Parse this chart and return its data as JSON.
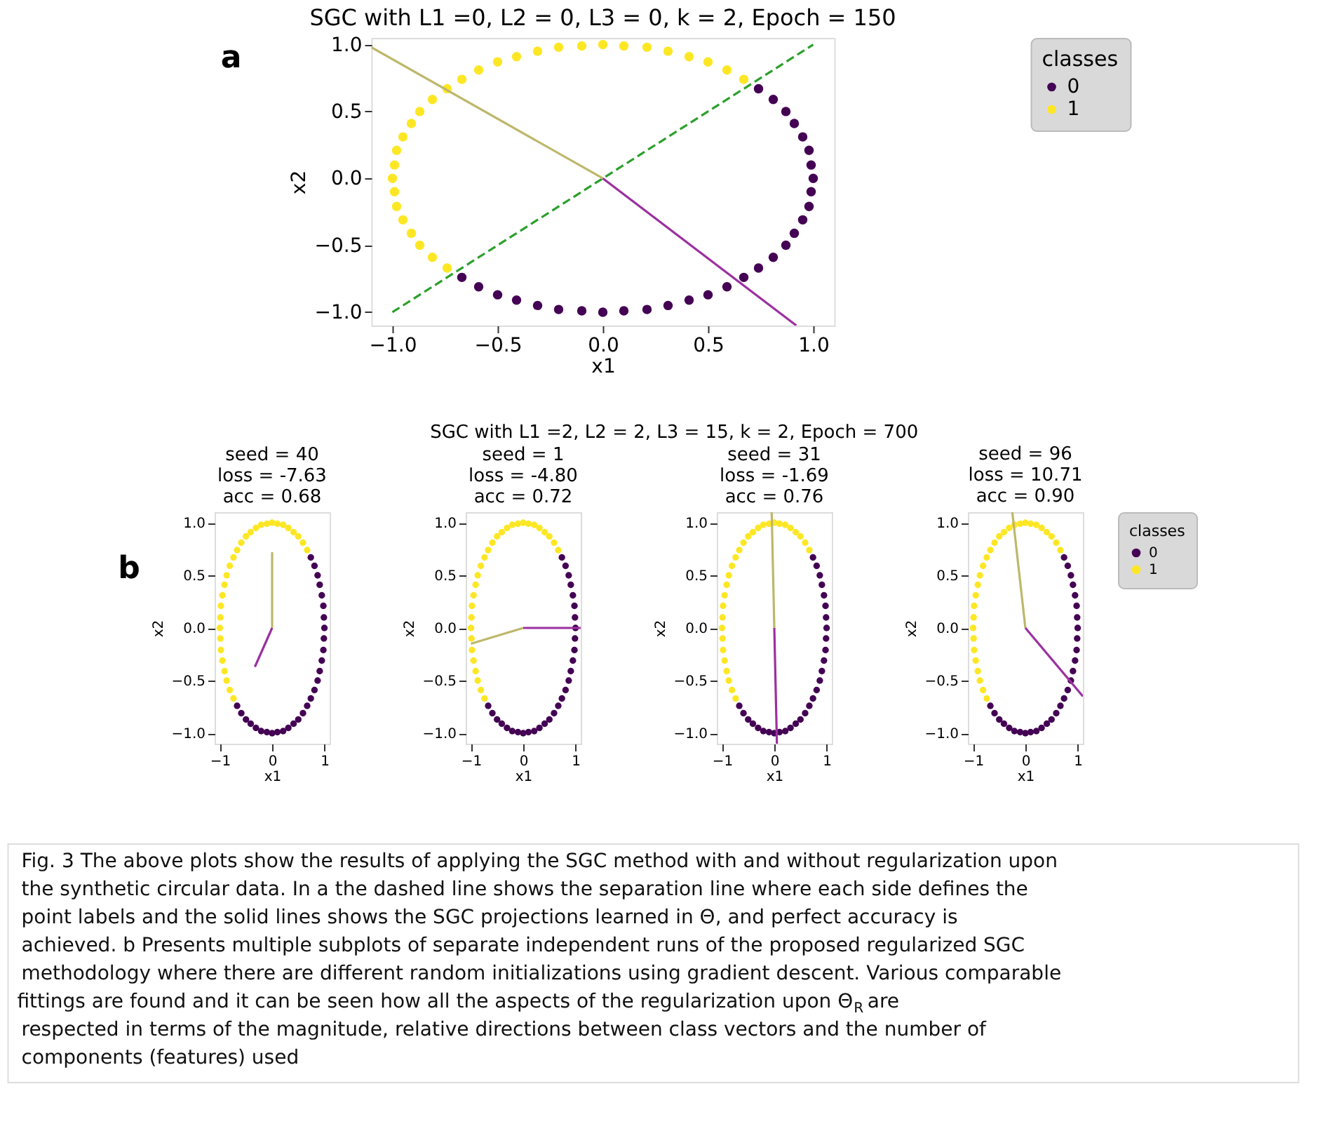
{
  "chart_data": [
    {
      "type": "scatter",
      "title": "SGC with L1 =0, L2 = 0, L3 = 0, k = 2, Epoch = 150",
      "xlabel": "x1",
      "ylabel": "x2",
      "legend_title": "classes",
      "legend": "right",
      "grid": false,
      "marker": "circle",
      "annotations": [
        "a"
      ],
      "xlim": [
        -1.1,
        1.1
      ],
      "ylim": [
        -1.1,
        1.05
      ],
      "xticks": [
        {
          "value": -1,
          "label": "−1.0"
        },
        {
          "value": -0.5,
          "label": "−0.5"
        },
        {
          "value": 0,
          "label": "0.0"
        },
        {
          "value": 0.5,
          "label": "0.5"
        },
        {
          "value": 1,
          "label": "1.0"
        }
      ],
      "yticks": [
        {
          "value": -1,
          "label": "−1.0"
        },
        {
          "value": -0.5,
          "label": "−0.5"
        },
        {
          "value": 0,
          "label": "0.0"
        },
        {
          "value": 0.5,
          "label": "0.5"
        },
        {
          "value": 1,
          "label": "1.0"
        }
      ],
      "series": [
        {
          "name": "0",
          "color": "#440154",
          "x": [
            0.74,
            0.81,
            0.87,
            0.91,
            0.95,
            0.98,
            0.99,
            1.0,
            0.99,
            0.98,
            0.95,
            0.91,
            0.87,
            0.81,
            0.74,
            0.67,
            0.59,
            0.5,
            0.41,
            0.31,
            0.21,
            0.1,
            0.0,
            -0.1,
            -0.21,
            -0.31,
            -0.41,
            -0.5,
            -0.59,
            -0.67
          ],
          "values": [
            0.67,
            0.59,
            0.5,
            0.41,
            0.31,
            0.21,
            0.1,
            0.0,
            -0.1,
            -0.21,
            -0.31,
            -0.41,
            -0.5,
            -0.59,
            -0.67,
            -0.74,
            -0.81,
            -0.87,
            -0.91,
            -0.95,
            -0.98,
            -0.99,
            -1.0,
            -0.99,
            -0.98,
            -0.95,
            -0.91,
            -0.87,
            -0.81,
            -0.74
          ]
        },
        {
          "name": "1",
          "color": "#fde725",
          "x": [
            0.67,
            0.59,
            0.5,
            0.41,
            0.31,
            0.21,
            0.1,
            0.0,
            -0.1,
            -0.21,
            -0.31,
            -0.41,
            -0.5,
            -0.59,
            -0.67,
            -0.74,
            -0.81,
            -0.87,
            -0.91,
            -0.95,
            -0.98,
            -0.99,
            -1.0,
            -0.99,
            -0.98,
            -0.95,
            -0.91,
            -0.87,
            -0.81,
            -0.74
          ],
          "values": [
            0.74,
            0.81,
            0.87,
            0.91,
            0.95,
            0.98,
            0.99,
            1.0,
            0.99,
            0.98,
            0.95,
            0.91,
            0.87,
            0.81,
            0.74,
            0.67,
            0.59,
            0.5,
            0.41,
            0.31,
            0.21,
            0.1,
            0.0,
            -0.1,
            -0.21,
            -0.31,
            -0.41,
            -0.5,
            -0.59,
            -0.67
          ]
        },
        {
          "type": "line",
          "marker": "none",
          "color": "#2ca02c",
          "line_style": "dashed",
          "x": [
            -1,
            1
          ],
          "values": [
            -1,
            1
          ]
        },
        {
          "type": "line",
          "marker": "none",
          "color": "#bdb76b",
          "line_style": "solid",
          "x": [
            0,
            -1.1
          ],
          "values": [
            0,
            0.98
          ]
        },
        {
          "type": "line",
          "marker": "none",
          "color": "#9b30a0",
          "line_style": "solid",
          "x": [
            0,
            0.92
          ],
          "values": [
            0,
            -1.1
          ]
        }
      ]
    },
    {
      "type": "scatter",
      "title": "seed = 40\nloss = -7.63\nacc = 0.68",
      "xlabel": "x1",
      "ylabel": "x2",
      "legend": false,
      "grid": false,
      "marker": "circle",
      "annotations": [
        "b",
        "SGC with L1 =2, L2 = 2, L3 = 15, k = 2, Epoch = 700"
      ],
      "xlim": [
        -1.1,
        1.1
      ],
      "ylim": [
        -1.1,
        1.1
      ],
      "xticks": [
        {
          "value": -1,
          "label": "−1"
        },
        0,
        1
      ],
      "yticks": [
        {
          "value": -1,
          "label": "−1.0"
        },
        {
          "value": -0.5,
          "label": "−0.5"
        },
        {
          "value": 0,
          "label": "0.0"
        },
        {
          "value": 0.5,
          "label": "0.5"
        },
        {
          "value": 1,
          "label": "1.0"
        }
      ],
      "series": [
        {
          "color": "#440154",
          "x": [
            0.74,
            0.81,
            0.87,
            0.91,
            0.95,
            0.98,
            0.99,
            1.0,
            0.99,
            0.98,
            0.95,
            0.91,
            0.87,
            0.81,
            0.74,
            0.67,
            0.59,
            0.5,
            0.41,
            0.31,
            0.21,
            0.1,
            0.0,
            -0.1,
            -0.21,
            -0.31,
            -0.41,
            -0.5,
            -0.59,
            -0.67
          ],
          "values": [
            0.67,
            0.59,
            0.5,
            0.41,
            0.31,
            0.21,
            0.1,
            0.0,
            -0.1,
            -0.21,
            -0.31,
            -0.41,
            -0.5,
            -0.59,
            -0.67,
            -0.74,
            -0.81,
            -0.87,
            -0.91,
            -0.95,
            -0.98,
            -0.99,
            -1.0,
            -0.99,
            -0.98,
            -0.95,
            -0.91,
            -0.87,
            -0.81,
            -0.74
          ]
        },
        {
          "color": "#fde725",
          "x": [
            0.67,
            0.59,
            0.5,
            0.41,
            0.31,
            0.21,
            0.1,
            0.0,
            -0.1,
            -0.21,
            -0.31,
            -0.41,
            -0.5,
            -0.59,
            -0.67,
            -0.74,
            -0.81,
            -0.87,
            -0.91,
            -0.95,
            -0.98,
            -0.99,
            -1.0,
            -0.99,
            -0.98,
            -0.95,
            -0.91,
            -0.87,
            -0.81,
            -0.74
          ],
          "values": [
            0.74,
            0.81,
            0.87,
            0.91,
            0.95,
            0.98,
            0.99,
            1.0,
            0.99,
            0.98,
            0.95,
            0.91,
            0.87,
            0.81,
            0.74,
            0.67,
            0.59,
            0.5,
            0.41,
            0.31,
            0.21,
            0.1,
            0.0,
            -0.1,
            -0.21,
            -0.31,
            -0.41,
            -0.5,
            -0.59,
            -0.67
          ]
        },
        {
          "type": "line",
          "marker": "none",
          "color": "#bdb76b",
          "line_style": "solid",
          "x": [
            0,
            0
          ],
          "values": [
            0,
            0.72
          ]
        },
        {
          "type": "line",
          "marker": "none",
          "color": "#9b30a0",
          "line_style": "solid",
          "x": [
            0,
            -0.33
          ],
          "values": [
            0,
            -0.37
          ]
        }
      ]
    },
    {
      "type": "scatter",
      "title": "seed = 1\nloss = -4.80\nacc = 0.72",
      "xlabel": "x1",
      "ylabel": "x2",
      "legend": false,
      "grid": false,
      "marker": "circle",
      "xlim": [
        -1.1,
        1.1
      ],
      "ylim": [
        -1.1,
        1.1
      ],
      "xticks": [
        {
          "value": -1,
          "label": "−1"
        },
        0,
        1
      ],
      "yticks": [
        {
          "value": -1,
          "label": "−1.0"
        },
        {
          "value": -0.5,
          "label": "−0.5"
        },
        {
          "value": 0,
          "label": "0.0"
        },
        {
          "value": 0.5,
          "label": "0.5"
        },
        {
          "value": 1,
          "label": "1.0"
        }
      ],
      "series": [
        {
          "color": "#440154",
          "x": [
            0.74,
            0.81,
            0.87,
            0.91,
            0.95,
            0.98,
            0.99,
            1.0,
            0.99,
            0.98,
            0.95,
            0.91,
            0.87,
            0.81,
            0.74,
            0.67,
            0.59,
            0.5,
            0.41,
            0.31,
            0.21,
            0.1,
            0.0,
            -0.1,
            -0.21,
            -0.31,
            -0.41,
            -0.5,
            -0.59,
            -0.67
          ],
          "values": [
            0.67,
            0.59,
            0.5,
            0.41,
            0.31,
            0.21,
            0.1,
            0.0,
            -0.1,
            -0.21,
            -0.31,
            -0.41,
            -0.5,
            -0.59,
            -0.67,
            -0.74,
            -0.81,
            -0.87,
            -0.91,
            -0.95,
            -0.98,
            -0.99,
            -1.0,
            -0.99,
            -0.98,
            -0.95,
            -0.91,
            -0.87,
            -0.81,
            -0.74
          ]
        },
        {
          "color": "#fde725",
          "x": [
            0.67,
            0.59,
            0.5,
            0.41,
            0.31,
            0.21,
            0.1,
            0.0,
            -0.1,
            -0.21,
            -0.31,
            -0.41,
            -0.5,
            -0.59,
            -0.67,
            -0.74,
            -0.81,
            -0.87,
            -0.91,
            -0.95,
            -0.98,
            -0.99,
            -1.0,
            -0.99,
            -0.98,
            -0.95,
            -0.91,
            -0.87,
            -0.81,
            -0.74
          ],
          "values": [
            0.74,
            0.81,
            0.87,
            0.91,
            0.95,
            0.98,
            0.99,
            1.0,
            0.99,
            0.98,
            0.95,
            0.91,
            0.87,
            0.81,
            0.74,
            0.67,
            0.59,
            0.5,
            0.41,
            0.31,
            0.21,
            0.1,
            0.0,
            -0.1,
            -0.21,
            -0.31,
            -0.41,
            -0.5,
            -0.59,
            -0.67
          ]
        },
        {
          "type": "line",
          "marker": "none",
          "color": "#bdb76b",
          "line_style": "solid",
          "x": [
            0,
            -1.0
          ],
          "values": [
            0,
            -0.15
          ]
        },
        {
          "type": "line",
          "marker": "none",
          "color": "#9b30a0",
          "line_style": "solid",
          "x": [
            0,
            1.1
          ],
          "values": [
            0,
            0.0
          ]
        }
      ]
    },
    {
      "type": "scatter",
      "title": "seed = 31\nloss = -1.69\nacc = 0.76",
      "xlabel": "x1",
      "ylabel": "x2",
      "legend": false,
      "grid": false,
      "marker": "circle",
      "xlim": [
        -1.1,
        1.1
      ],
      "ylim": [
        -1.1,
        1.1
      ],
      "xticks": [
        {
          "value": -1,
          "label": "−1"
        },
        0,
        1
      ],
      "yticks": [
        {
          "value": -1,
          "label": "−1.0"
        },
        {
          "value": -0.5,
          "label": "−0.5"
        },
        {
          "value": 0,
          "label": "0.0"
        },
        {
          "value": 0.5,
          "label": "0.5"
        },
        {
          "value": 1,
          "label": "1.0"
        }
      ],
      "series": [
        {
          "color": "#440154",
          "x": [
            0.74,
            0.81,
            0.87,
            0.91,
            0.95,
            0.98,
            0.99,
            1.0,
            0.99,
            0.98,
            0.95,
            0.91,
            0.87,
            0.81,
            0.74,
            0.67,
            0.59,
            0.5,
            0.41,
            0.31,
            0.21,
            0.1,
            0.0,
            -0.1,
            -0.21,
            -0.31,
            -0.41,
            -0.5,
            -0.59,
            -0.67
          ],
          "values": [
            0.67,
            0.59,
            0.5,
            0.41,
            0.31,
            0.21,
            0.1,
            0.0,
            -0.1,
            -0.21,
            -0.31,
            -0.41,
            -0.5,
            -0.59,
            -0.67,
            -0.74,
            -0.81,
            -0.87,
            -0.91,
            -0.95,
            -0.98,
            -0.99,
            -1.0,
            -0.99,
            -0.98,
            -0.95,
            -0.91,
            -0.87,
            -0.81,
            -0.74
          ]
        },
        {
          "color": "#fde725",
          "x": [
            0.67,
            0.59,
            0.5,
            0.41,
            0.31,
            0.21,
            0.1,
            0.0,
            -0.1,
            -0.21,
            -0.31,
            -0.41,
            -0.5,
            -0.59,
            -0.67,
            -0.74,
            -0.81,
            -0.87,
            -0.91,
            -0.95,
            -0.98,
            -0.99,
            -1.0,
            -0.99,
            -0.98,
            -0.95,
            -0.91,
            -0.87,
            -0.81,
            -0.74
          ],
          "values": [
            0.74,
            0.81,
            0.87,
            0.91,
            0.95,
            0.98,
            0.99,
            1.0,
            0.99,
            0.98,
            0.95,
            0.91,
            0.87,
            0.81,
            0.74,
            0.67,
            0.59,
            0.5,
            0.41,
            0.31,
            0.21,
            0.1,
            0.0,
            -0.1,
            -0.21,
            -0.31,
            -0.41,
            -0.5,
            -0.59,
            -0.67
          ]
        },
        {
          "type": "line",
          "marker": "none",
          "color": "#bdb76b",
          "line_style": "solid",
          "x": [
            0,
            -0.05
          ],
          "values": [
            0,
            1.1
          ]
        },
        {
          "type": "line",
          "marker": "none",
          "color": "#9b30a0",
          "line_style": "solid",
          "x": [
            0,
            0.05
          ],
          "values": [
            0,
            -1.1
          ]
        }
      ]
    },
    {
      "type": "scatter",
      "title": "seed = 96\nloss = 10.71\nacc = 0.90",
      "xlabel": "x1",
      "ylabel": "x2",
      "legend_title": "classes",
      "legend": "right",
      "grid": false,
      "marker": "circle",
      "annotations": [
        "Fig. 3  The above plots show the results of applying the SGC method with and without regularization upon the synthetic circular data. In a the dashed line shows the separation line where each side defines the point labels and the solid lines shows the SGC projections learned in Θ, and perfect accuracy is achieved. b Presents multiple subplots of separate independent runs of the proposed regularized SGC methodology where there are different random initializations using gradient descent. Various comparable fittings are found and it can be seen how all the aspects of the regularization upon Θ$_{R}$ are respected in terms of the magnitude, relative directions between class vectors and the number of components (features) used"
      ],
      "xlim": [
        -1.1,
        1.1
      ],
      "ylim": [
        -1.1,
        1.1
      ],
      "xticks": [
        {
          "value": -1,
          "label": "−1"
        },
        0,
        1
      ],
      "yticks": [
        {
          "value": -1,
          "label": "−1.0"
        },
        {
          "value": -0.5,
          "label": "−0.5"
        },
        {
          "value": 0,
          "label": "0.0"
        },
        {
          "value": 0.5,
          "label": "0.5"
        },
        {
          "value": 1,
          "label": "1.0"
        }
      ],
      "series": [
        {
          "name": "0",
          "color": "#440154",
          "x": [
            0.74,
            0.81,
            0.87,
            0.91,
            0.95,
            0.98,
            0.99,
            1.0,
            0.99,
            0.98,
            0.95,
            0.91,
            0.87,
            0.81,
            0.74,
            0.67,
            0.59,
            0.5,
            0.41,
            0.31,
            0.21,
            0.1,
            0.0,
            -0.1,
            -0.21,
            -0.31,
            -0.41,
            -0.5,
            -0.59,
            -0.67
          ],
          "values": [
            0.67,
            0.59,
            0.5,
            0.41,
            0.31,
            0.21,
            0.1,
            0.0,
            -0.1,
            -0.21,
            -0.31,
            -0.41,
            -0.5,
            -0.59,
            -0.67,
            -0.74,
            -0.81,
            -0.87,
            -0.91,
            -0.95,
            -0.98,
            -0.99,
            -1.0,
            -0.99,
            -0.98,
            -0.95,
            -0.91,
            -0.87,
            -0.81,
            -0.74
          ]
        },
        {
          "name": "1",
          "color": "#fde725",
          "x": [
            0.67,
            0.59,
            0.5,
            0.41,
            0.31,
            0.21,
            0.1,
            0.0,
            -0.1,
            -0.21,
            -0.31,
            -0.41,
            -0.5,
            -0.59,
            -0.67,
            -0.74,
            -0.81,
            -0.87,
            -0.91,
            -0.95,
            -0.98,
            -0.99,
            -1.0,
            -0.99,
            -0.98,
            -0.95,
            -0.91,
            -0.87,
            -0.81,
            -0.74
          ],
          "values": [
            0.74,
            0.81,
            0.87,
            0.91,
            0.95,
            0.98,
            0.99,
            1.0,
            0.99,
            0.98,
            0.95,
            0.91,
            0.87,
            0.81,
            0.74,
            0.67,
            0.59,
            0.5,
            0.41,
            0.31,
            0.21,
            0.1,
            0.0,
            -0.1,
            -0.21,
            -0.31,
            -0.41,
            -0.5,
            -0.59,
            -0.67
          ]
        },
        {
          "type": "line",
          "marker": "none",
          "color": "#bdb76b",
          "line_style": "solid",
          "x": [
            0,
            -0.25
          ],
          "values": [
            0,
            1.1
          ]
        },
        {
          "type": "line",
          "marker": "none",
          "color": "#9b30a0",
          "line_style": "solid",
          "x": [
            0,
            1.1
          ],
          "values": [
            0,
            -0.65
          ]
        }
      ]
    }
  ]
}
